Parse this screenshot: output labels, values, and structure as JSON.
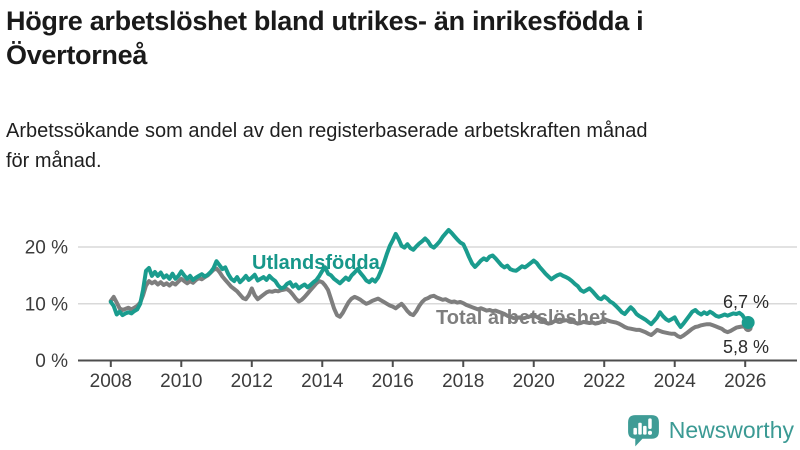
{
  "header": {
    "title_line1": "Högre arbetslöshet bland utrikes- än inrikesfödda i",
    "title_line2": "Övertorneå",
    "subtitle_line1": "Arbetssökande som andel av den registerbaserade arbetskraften månad",
    "subtitle_line2": "för månad."
  },
  "branding": {
    "name": "Newsworthy",
    "logo_color": "#3f9c96",
    "text_color": "#3b9a94"
  },
  "chart_data": {
    "type": "line",
    "title": "Högre arbetslöshet bland utrikes- än inrikesfödda i Övertorneå",
    "subtitle": "Arbetssökande som andel av den registerbaserade arbetskraften månad för månad.",
    "unit": "%",
    "grid": "horizontal",
    "x_axis": {
      "ticks": [
        2008,
        2010,
        2012,
        2014,
        2016,
        2018,
        2020,
        2022,
        2024,
        2026
      ],
      "range": [
        2007.1,
        2027.5
      ]
    },
    "y_axis": {
      "ticks": [
        {
          "label": "0 %",
          "value": 0
        },
        {
          "label": "10 %",
          "value": 10
        },
        {
          "label": "20 %",
          "value": 20
        }
      ],
      "range": [
        0,
        28
      ]
    },
    "start_year": 2008,
    "points_per_year": 12,
    "colors": {
      "grid": "#d9d9d9",
      "axis": "#4d4d4d"
    },
    "series": [
      {
        "name": "Utlandsfödda",
        "color": "#1a9c8e",
        "end_label": "6,7 %",
        "end_value": 6.7,
        "end_dot_radius": 6.5,
        "values": [
          10.3,
          9.6,
          8.1,
          8.6,
          8.0,
          8.3,
          8.5,
          8.3,
          8.7,
          9.0,
          10.0,
          12.5,
          15.8,
          16.3,
          14.9,
          15.6,
          14.9,
          15.5,
          14.6,
          15.0,
          14.4,
          15.3,
          14.4,
          14.9,
          15.7,
          15.0,
          14.4,
          14.9,
          14.2,
          14.6,
          14.9,
          15.2,
          14.8,
          15.1,
          15.6,
          16.3,
          17.5,
          16.8,
          16.1,
          16.4,
          15.2,
          14.4,
          14.0,
          14.7,
          13.8,
          14.3,
          14.9,
          14.2,
          14.6,
          15.1,
          14.1,
          14.4,
          14.7,
          14.2,
          14.9,
          14.4,
          14.0,
          13.2,
          12.7,
          12.9,
          13.5,
          13.8,
          13.0,
          13.4,
          12.7,
          13.1,
          13.4,
          12.9,
          13.3,
          13.8,
          14.2,
          14.9,
          15.8,
          16.4,
          15.3,
          15.0,
          14.4,
          14.0,
          13.6,
          14.1,
          14.6,
          14.2,
          15.0,
          15.5,
          16.1,
          15.4,
          14.8,
          14.1,
          13.8,
          14.3,
          13.9,
          14.6,
          15.8,
          17.2,
          18.8,
          20.2,
          21.2,
          22.3,
          21.4,
          20.2,
          19.9,
          20.5,
          19.8,
          19.5,
          20.1,
          20.6,
          21.0,
          21.5,
          21.0,
          20.2,
          19.9,
          20.4,
          21.0,
          21.8,
          22.4,
          23.0,
          22.5,
          21.9,
          21.3,
          20.8,
          20.5,
          19.4,
          18.2,
          17.1,
          16.5,
          17.0,
          17.6,
          18.0,
          17.7,
          18.3,
          18.5,
          18.0,
          17.4,
          16.8,
          16.4,
          16.7,
          16.1,
          15.9,
          15.8,
          16.2,
          16.6,
          16.4,
          16.8,
          17.2,
          17.6,
          17.2,
          16.5,
          15.9,
          15.3,
          14.8,
          14.3,
          14.7,
          15.0,
          15.2,
          14.9,
          14.7,
          14.4,
          14.0,
          13.5,
          13.1,
          12.4,
          12.1,
          12.4,
          12.7,
          12.2,
          11.6,
          11.0,
          10.8,
          11.3,
          10.9,
          10.4,
          10.1,
          9.6,
          9.1,
          8.5,
          8.2,
          8.8,
          9.4,
          8.9,
          8.2,
          7.8,
          7.5,
          7.2,
          6.8,
          6.4,
          7.0,
          7.6,
          8.5,
          7.8,
          7.3,
          7.0,
          7.3,
          7.6,
          6.6,
          5.9,
          6.5,
          7.2,
          7.9,
          8.6,
          8.9,
          8.4,
          8.1,
          8.5,
          8.2,
          8.6,
          8.3,
          7.9,
          7.7,
          7.9,
          8.1,
          7.9,
          8.1,
          8.3,
          8.2,
          8.4,
          8.0,
          7.2,
          6.7
        ]
      },
      {
        "name": "Total arbetslöshet",
        "color": "#7e7e7e",
        "end_label": "5,8 %",
        "end_value": 5.8,
        "end_dot_radius": 4.5,
        "values": [
          10.5,
          11.2,
          10.2,
          9.2,
          8.9,
          9.1,
          9.3,
          9.0,
          9.3,
          9.6,
          10.2,
          11.5,
          13.2,
          14.0,
          13.6,
          13.9,
          13.4,
          13.8,
          13.3,
          13.6,
          13.2,
          13.7,
          13.4,
          13.9,
          14.4,
          14.0,
          13.6,
          14.0,
          13.7,
          14.2,
          14.5,
          14.3,
          14.7,
          15.0,
          15.5,
          16.0,
          16.2,
          15.6,
          14.8,
          14.2,
          13.6,
          13.0,
          12.6,
          12.2,
          11.6,
          11.0,
          10.8,
          11.5,
          12.7,
          11.5,
          10.8,
          11.2,
          11.6,
          12.0,
          12.2,
          12.1,
          12.3,
          12.2,
          12.4,
          12.5,
          12.6,
          12.2,
          11.6,
          10.9,
          10.4,
          10.7,
          11.2,
          11.8,
          12.4,
          13.0,
          13.6,
          14.0,
          13.8,
          13.2,
          12.4,
          10.8,
          9.2,
          8.0,
          7.7,
          8.4,
          9.4,
          10.3,
          10.9,
          11.2,
          11.0,
          10.7,
          10.3,
          10.0,
          10.2,
          10.5,
          10.7,
          10.9,
          10.6,
          10.3,
          10.0,
          9.7,
          9.5,
          9.2,
          9.6,
          10.0,
          9.4,
          8.7,
          8.2,
          8.0,
          8.7,
          9.6,
          10.3,
          10.8,
          11.0,
          11.3,
          11.4,
          11.1,
          10.9,
          10.7,
          10.8,
          10.5,
          10.3,
          10.4,
          10.2,
          10.3,
          10.1,
          9.8,
          9.6,
          9.4,
          9.2,
          9.0,
          9.2,
          9.0,
          8.8,
          8.9,
          8.7,
          8.8,
          8.6,
          8.4,
          8.2,
          7.9,
          7.7,
          7.5,
          7.4,
          7.6,
          7.4,
          7.5,
          7.7,
          7.8,
          7.9,
          7.7,
          7.4,
          7.0,
          6.7,
          6.5,
          6.6,
          6.9,
          7.1,
          7.2,
          7.0,
          7.1,
          7.0,
          6.9,
          6.7,
          6.5,
          6.6,
          6.8,
          6.7,
          6.6,
          6.7,
          6.5,
          6.6,
          6.8,
          7.3,
          7.1,
          6.9,
          6.8,
          6.7,
          6.5,
          6.2,
          5.9,
          5.7,
          5.6,
          5.5,
          5.4,
          5.4,
          5.2,
          5.0,
          4.7,
          4.5,
          4.9,
          5.4,
          5.2,
          5.0,
          4.9,
          4.8,
          4.7,
          4.7,
          4.3,
          4.1,
          4.4,
          4.8,
          5.2,
          5.6,
          5.9,
          6.0,
          6.2,
          6.3,
          6.4,
          6.4,
          6.2,
          6.0,
          5.8,
          5.6,
          5.2,
          5.0,
          5.2,
          5.5,
          5.8,
          5.9,
          6.0,
          5.9,
          5.8
        ]
      }
    ]
  }
}
